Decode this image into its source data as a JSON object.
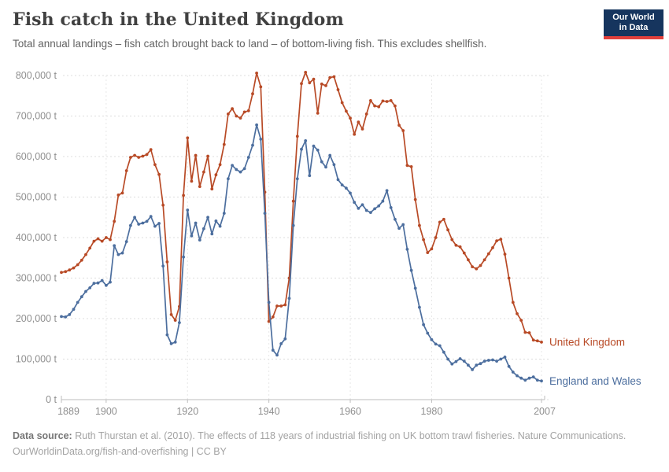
{
  "header": {
    "title": "Fish catch in the United Kingdom",
    "subtitle": "Total annual landings – fish catch brought back to land – of bottom-living fish. This excludes shellfish.",
    "logo": {
      "line1": "Our World",
      "line2": "in Data",
      "bg_color": "#16355e",
      "accent_color": "#e2403c"
    }
  },
  "footer": {
    "source_label": "Data source:",
    "source_text": "Ruth Thurstan et al. (2010). The effects of 118 years of industrial fishing on UK bottom trawl fisheries. Nature Communications.",
    "line2": "OurWorldinData.org/fish-and-overfishing | CC BY"
  },
  "chart_data": {
    "type": "line",
    "title": "Fish catch in the United Kingdom",
    "xlabel": "",
    "ylabel": "tonnes",
    "xlim": [
      1889,
      2007
    ],
    "ylim": [
      0,
      800000
    ],
    "grid": "dashed horizontal gridlines at each y tick, faint dashed vertical gridlines at x ticks",
    "legend": "end-of-line entity labels, colored as series",
    "markers": "small filled circles on every yearly data point",
    "xticks": [
      1889,
      1900,
      1920,
      1940,
      1960,
      1980,
      2007
    ],
    "xtick_labels": [
      "1889",
      "1900",
      "1920",
      "1940",
      "1960",
      "1980",
      "2007"
    ],
    "yticks": [
      0,
      100000,
      200000,
      300000,
      400000,
      500000,
      600000,
      700000,
      800000
    ],
    "ytick_labels": [
      "0 t",
      "100,000 t",
      "200,000 t",
      "300,000 t",
      "400,000 t",
      "500,000 t",
      "600,000 t",
      "700,000 t",
      "800,000 t"
    ],
    "years": [
      1889,
      1890,
      1891,
      1892,
      1893,
      1894,
      1895,
      1896,
      1897,
      1898,
      1899,
      1900,
      1901,
      1902,
      1903,
      1904,
      1905,
      1906,
      1907,
      1908,
      1909,
      1910,
      1911,
      1912,
      1913,
      1914,
      1915,
      1916,
      1917,
      1918,
      1919,
      1920,
      1921,
      1922,
      1923,
      1924,
      1925,
      1926,
      1927,
      1928,
      1929,
      1930,
      1931,
      1932,
      1933,
      1934,
      1935,
      1936,
      1937,
      1938,
      1939,
      1940,
      1941,
      1942,
      1943,
      1944,
      1945,
      1946,
      1947,
      1948,
      1949,
      1950,
      1951,
      1952,
      1953,
      1954,
      1955,
      1956,
      1957,
      1958,
      1959,
      1960,
      1961,
      1962,
      1963,
      1964,
      1965,
      1966,
      1967,
      1968,
      1969,
      1970,
      1971,
      1972,
      1973,
      1974,
      1975,
      1976,
      1977,
      1978,
      1979,
      1980,
      1981,
      1982,
      1983,
      1984,
      1985,
      1986,
      1987,
      1988,
      1989,
      1990,
      1991,
      1992,
      1993,
      1994,
      1995,
      1996,
      1997,
      1998,
      1999,
      2000,
      2001,
      2002,
      2003,
      2004,
      2005,
      2006,
      2007
    ],
    "series": [
      {
        "name": "United Kingdom",
        "color": "#b84a26",
        "values": [
          314000,
          316000,
          320000,
          325000,
          333000,
          344000,
          358000,
          374000,
          391000,
          397000,
          391000,
          400000,
          395000,
          440000,
          505000,
          510000,
          565000,
          598000,
          603000,
          598000,
          601000,
          605000,
          617000,
          580000,
          556000,
          480000,
          340000,
          210000,
          196000,
          230000,
          504000,
          646000,
          539000,
          603000,
          526000,
          562000,
          601000,
          520000,
          555000,
          580000,
          630000,
          705000,
          718000,
          700000,
          695000,
          710000,
          713000,
          755000,
          806000,
          772000,
          512000,
          193000,
          204000,
          231000,
          231000,
          234000,
          300000,
          490000,
          650000,
          780000,
          808000,
          782000,
          791000,
          707000,
          779000,
          775000,
          795000,
          797000,
          765000,
          733000,
          712000,
          695000,
          655000,
          685000,
          668000,
          705000,
          738000,
          725000,
          723000,
          737000,
          736000,
          738000,
          725000,
          677000,
          664000,
          578000,
          575000,
          494000,
          430000,
          395000,
          363000,
          372000,
          400000,
          438000,
          445000,
          419000,
          395000,
          381000,
          377000,
          362000,
          345000,
          328000,
          323000,
          331000,
          345000,
          360000,
          375000,
          392000,
          396000,
          359000,
          300000,
          240000,
          212000,
          196000,
          166000,
          165000,
          147000,
          145000,
          142000
        ]
      },
      {
        "name": "England and Wales",
        "color": "#4c6e9e",
        "values": [
          205000,
          204000,
          210000,
          223000,
          240000,
          254000,
          267000,
          276000,
          287000,
          288000,
          294000,
          282000,
          290000,
          380000,
          358000,
          362000,
          390000,
          430000,
          450000,
          433000,
          436000,
          440000,
          452000,
          428000,
          435000,
          330000,
          160000,
          138000,
          142000,
          190000,
          352000,
          468000,
          404000,
          436000,
          394000,
          422000,
          450000,
          409000,
          441000,
          428000,
          460000,
          545000,
          578000,
          568000,
          562000,
          570000,
          598000,
          628000,
          678000,
          643000,
          460000,
          240000,
          122000,
          110000,
          138000,
          150000,
          250000,
          430000,
          545000,
          618000,
          639000,
          553000,
          626000,
          616000,
          587000,
          574000,
          603000,
          580000,
          543000,
          530000,
          522000,
          510000,
          487000,
          472000,
          481000,
          467000,
          462000,
          471000,
          478000,
          490000,
          516000,
          474000,
          445000,
          423000,
          432000,
          371000,
          319000,
          275000,
          228000,
          185000,
          164000,
          148000,
          137000,
          133000,
          117000,
          100000,
          88000,
          94000,
          101000,
          95000,
          85000,
          74000,
          85000,
          89000,
          95000,
          97000,
          98000,
          95000,
          100000,
          105000,
          82000,
          68000,
          59000,
          53000,
          48000,
          53000,
          56000,
          48000,
          46000
        ]
      }
    ]
  }
}
